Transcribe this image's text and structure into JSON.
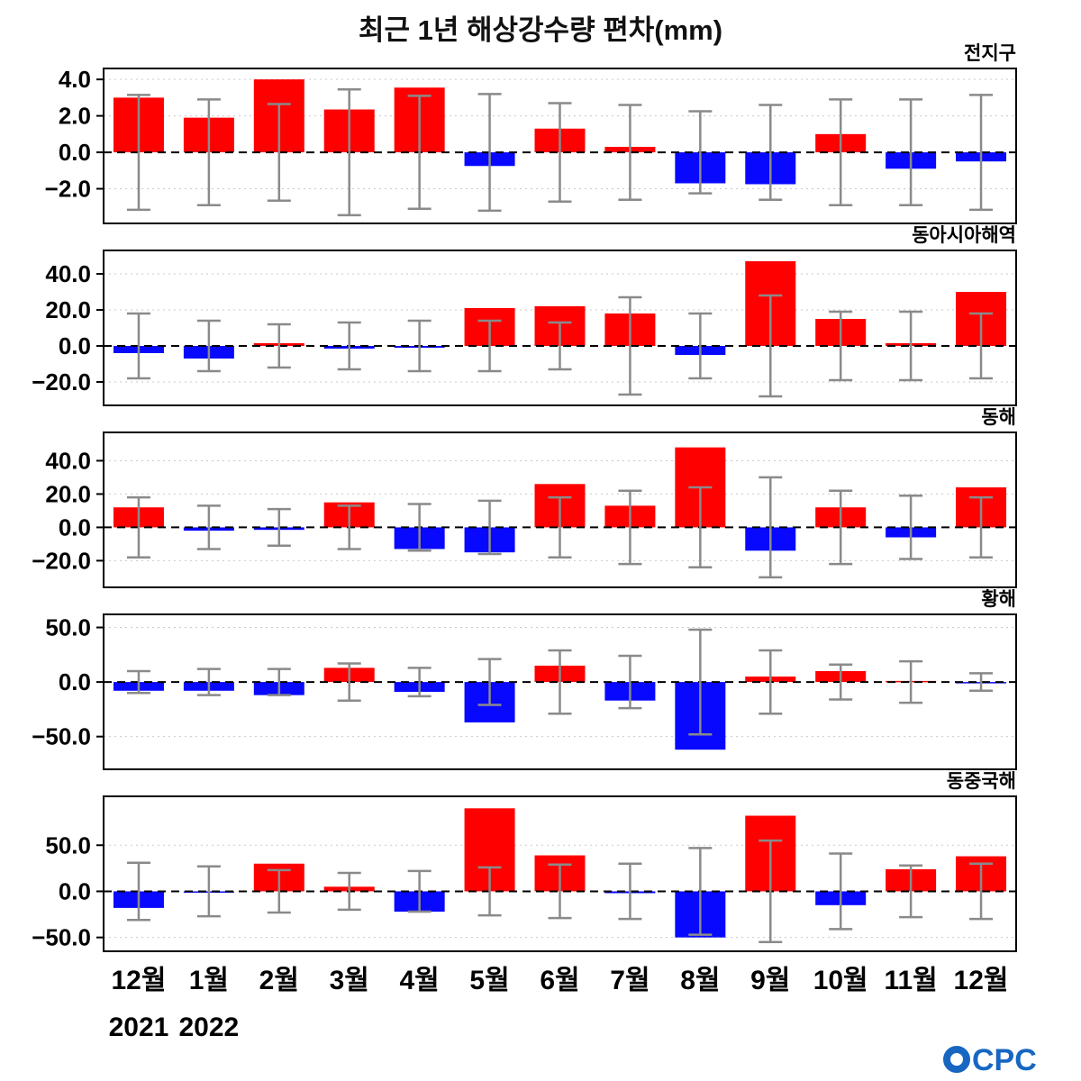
{
  "title": "최근 1년 해상강수량 편차(mm)",
  "footer": {
    "years": [
      "2021",
      "2022"
    ],
    "logo_name": "OCPC",
    "logo_text": "CPC",
    "logo_color": "#1767c2"
  },
  "colors": {
    "positive": "#ff0000",
    "negative": "#0808ff",
    "errorbar": "#8a8a8a",
    "zero_line": "#000000",
    "grid": "#c9c9c9",
    "border": "#000000"
  },
  "chart_data": {
    "type": "bar",
    "categories": [
      "12월",
      "1월",
      "2월",
      "3월",
      "4월",
      "5월",
      "6월",
      "7월",
      "8월",
      "9월",
      "10월",
      "11월",
      "12월"
    ],
    "legend": "none",
    "grid": "horizontal-dotted",
    "error_bars": "symmetric about zero (gray whiskers with caps)",
    "title": "최근 1년 해상강수량 편차(mm)",
    "panels": [
      {
        "label": "전지구",
        "ylim": [
          -3.9,
          4.6
        ],
        "yticks": [
          -2,
          0,
          2,
          4
        ],
        "values": [
          3.0,
          1.9,
          4.0,
          2.35,
          3.55,
          -0.75,
          1.3,
          0.3,
          -1.7,
          -1.75,
          1.0,
          -0.9,
          -0.5
        ],
        "error": [
          3.15,
          2.9,
          2.65,
          3.45,
          3.1,
          3.2,
          2.7,
          2.6,
          2.25,
          2.6,
          2.9,
          2.9,
          3.15
        ]
      },
      {
        "label": "동아시아해역",
        "ylim": [
          -33,
          53
        ],
        "yticks": [
          -20,
          0,
          20,
          40
        ],
        "values": [
          -4,
          -7,
          1.5,
          -1.5,
          -1,
          21,
          22,
          18,
          -5,
          47,
          15,
          1.5,
          30
        ],
        "error": [
          18,
          14,
          12,
          13,
          14,
          14,
          13,
          27,
          18,
          28,
          19,
          19,
          18
        ]
      },
      {
        "label": "동해",
        "ylim": [
          -36,
          57
        ],
        "yticks": [
          -20,
          0,
          20,
          40
        ],
        "values": [
          12,
          -2,
          -1.5,
          15,
          -13,
          -15,
          26,
          13,
          48,
          -14,
          12,
          -6,
          24
        ],
        "error": [
          18,
          13,
          11,
          13,
          14,
          16,
          18,
          22,
          24,
          30,
          22,
          19,
          18
        ]
      },
      {
        "label": "황해",
        "ylim": [
          -80,
          62
        ],
        "yticks": [
          -50,
          0,
          50
        ],
        "values": [
          -8,
          -8,
          -12,
          13,
          -9,
          -37,
          15,
          -17,
          -62,
          5,
          10,
          1,
          -1
        ],
        "error": [
          10,
          12,
          12,
          17,
          13,
          21,
          29,
          24,
          48,
          29,
          16,
          19,
          8
        ]
      },
      {
        "label": "동중국해",
        "ylim": [
          -65,
          103
        ],
        "yticks": [
          -50,
          0,
          50
        ],
        "values": [
          -18,
          -1,
          30,
          5,
          -22,
          90,
          39,
          -2,
          -50,
          82,
          -15,
          24,
          38
        ],
        "error": [
          31,
          27,
          23,
          20,
          22,
          26,
          29,
          30,
          47,
          55,
          41,
          28,
          30
        ]
      }
    ]
  }
}
